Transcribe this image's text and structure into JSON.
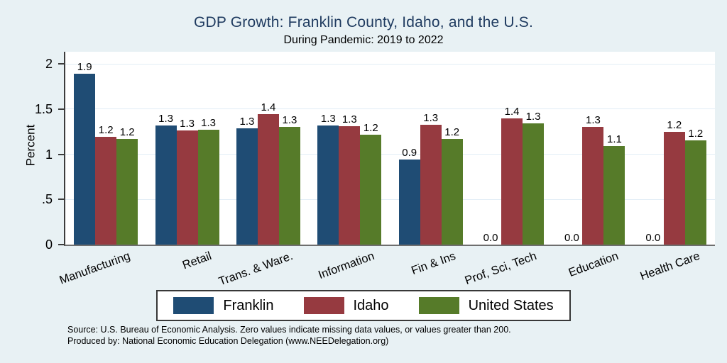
{
  "header": {
    "title": "GDP Growth: Franklin County, Idaho, and the U.S.",
    "subtitle": "During Pandemic: 2019 to 2022"
  },
  "footer": {
    "source_line1": "Source: U.S. Bureau of Economic Analysis. Zero values indicate missing data values, or values greater than 200.",
    "source_line2": "Produced by: National Economic Education Delegation (www.NEEDelegation.org)"
  },
  "colors": {
    "background": "#e8f1f4",
    "title_text": "#1e3a5f",
    "franklin_blue": "#1f4c74",
    "idaho_red": "#963a40",
    "us_green": "#567b29",
    "axis": "#3c3c3c",
    "gridline": "#e2edf6",
    "plot_background": "#ffffff"
  },
  "chart_data": {
    "type": "bar",
    "title": "GDP Growth: Franklin County, Idaho, and the U.S.",
    "subtitle": "During Pandemic: 2019 to 2022",
    "ylabel": "Percent",
    "xlabel": "",
    "ylim": [
      0,
      2.15
    ],
    "grid": true,
    "legend_position": "bottom",
    "yticks": [
      {
        "value": 0,
        "label": "0"
      },
      {
        "value": 0.5,
        "label": ".5"
      },
      {
        "value": 1,
        "label": "1"
      },
      {
        "value": 1.5,
        "label": "1.5"
      },
      {
        "value": 2,
        "label": "2"
      }
    ],
    "categories": [
      "Manufacturing",
      "Retail",
      "Trans. & Ware.",
      "Information",
      "Fin & Ins",
      "Prof, Sci, Tech",
      "Education",
      "Health Care"
    ],
    "series": [
      {
        "name": "Franklin",
        "color": "#1f4c74",
        "values": [
          1.9,
          1.3,
          1.3,
          1.3,
          0.9,
          0.0,
          0.0,
          0.0
        ],
        "bar_heights": [
          1.89,
          1.32,
          1.29,
          1.32,
          0.94,
          0,
          0,
          0
        ]
      },
      {
        "name": "Idaho",
        "color": "#963a40",
        "values": [
          1.2,
          1.3,
          1.4,
          1.3,
          1.3,
          1.4,
          1.3,
          1.2
        ],
        "bar_heights": [
          1.19,
          1.26,
          1.44,
          1.31,
          1.33,
          1.4,
          1.3,
          1.25
        ]
      },
      {
        "name": "United States",
        "color": "#567b29",
        "values": [
          1.2,
          1.3,
          1.3,
          1.2,
          1.2,
          1.3,
          1.1,
          1.2
        ],
        "bar_heights": [
          1.17,
          1.27,
          1.3,
          1.22,
          1.17,
          1.34,
          1.09,
          1.15
        ]
      }
    ],
    "value_label_decimals": 1,
    "zero_note": "Zero values indicate missing data values, or values greater than 200."
  }
}
